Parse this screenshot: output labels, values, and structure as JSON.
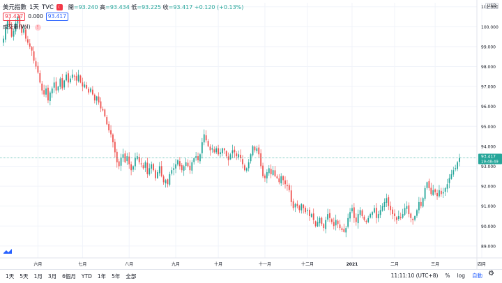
{
  "legend": {
    "symbol_name": "美元指數",
    "interval": "1天",
    "exchange": "TVC",
    "ohlc": {
      "open_label": "開",
      "open": "93.240",
      "high_label": "高",
      "high": "93.434",
      "low_label": "低",
      "low": "93.225",
      "close_label": "收",
      "close": "93.417",
      "change": "+0.120 (+0.13%)"
    },
    "bid": "93.417",
    "spread": "0.000",
    "ask": "93.417",
    "volume_label": "成交量(Vol)",
    "market_status_icon": "market-closed-icon",
    "volume_warning_icon": "warning-icon"
  },
  "currency_button": "USD",
  "price_tag": {
    "value": "93.417",
    "countdown": "19:48:49"
  },
  "toolbar": {
    "ranges": [
      "1天",
      "5天",
      "1月",
      "3月",
      "6個月",
      "YTD",
      "1年",
      "5年",
      "全部"
    ],
    "clock": "11:11:10 (UTC+8)",
    "percent": "%",
    "log": "log",
    "auto": "自動",
    "settings_icon": "gear-icon"
  },
  "colors": {
    "up": "#26a69a",
    "down": "#ef5350",
    "grid": "#f0f3fa",
    "price_line": "#26a69a"
  },
  "chart_data": {
    "type": "candlestick",
    "title": "美元指數 1天 TVC",
    "ylim": [
      88.4,
      101.2
    ],
    "y_ticks": [
      "101.000",
      "100.000",
      "99.000",
      "98.000",
      "97.000",
      "96.000",
      "95.000",
      "94.000",
      "93.000",
      "92.000",
      "91.000",
      "90.000",
      "89.000"
    ],
    "x_ticks": [
      {
        "label": "六月",
        "index": 17
      },
      {
        "label": "七月",
        "index": 39
      },
      {
        "label": "八月",
        "index": 62
      },
      {
        "label": "九月",
        "index": 85
      },
      {
        "label": "十月",
        "index": 106
      },
      {
        "label": "十一月",
        "index": 129
      },
      {
        "label": "十二月",
        "index": 150
      },
      {
        "label": "2021",
        "index": 172
      },
      {
        "label": "二月",
        "index": 193
      },
      {
        "label": "三月",
        "index": 213
      },
      {
        "label": "四月",
        "index": 236
      }
    ],
    "closes": [
      99.4,
      99.9,
      100.3,
      100.0,
      99.5,
      99.8,
      100.2,
      100.5,
      100.0,
      99.7,
      99.9,
      99.4,
      99.2,
      99.0,
      98.8,
      98.3,
      98.0,
      97.7,
      97.2,
      96.8,
      96.6,
      96.9,
      96.3,
      96.7,
      96.9,
      97.2,
      96.8,
      97.0,
      97.4,
      96.9,
      97.3,
      97.6,
      97.2,
      97.4,
      97.6,
      97.5,
      97.3,
      97.6,
      97.2,
      97.0,
      97.1,
      96.9,
      96.7,
      96.9,
      96.6,
      96.3,
      96.5,
      96.2,
      95.9,
      95.8,
      95.5,
      95.1,
      94.8,
      94.6,
      94.2,
      93.7,
      93.2,
      93.0,
      93.4,
      93.6,
      93.2,
      93.5,
      93.1,
      92.8,
      93.0,
      93.4,
      93.5,
      93.2,
      93.1,
      92.9,
      93.2,
      92.6,
      92.9,
      93.1,
      92.8,
      92.4,
      92.7,
      93.0,
      92.5,
      92.2,
      92.3,
      92.1,
      92.6,
      92.8,
      92.9,
      93.1,
      93.3,
      93.0,
      92.8,
      93.0,
      93.2,
      93.0,
      92.8,
      93.2,
      93.4,
      93.5,
      93.3,
      93.6,
      94.2,
      94.6,
      94.3,
      94.0,
      93.8,
      93.9,
      93.7,
      93.9,
      93.6,
      93.7,
      93.9,
      93.8,
      93.5,
      93.3,
      93.6,
      93.8,
      93.7,
      93.5,
      93.6,
      93.4,
      93.1,
      92.8,
      92.9,
      93.2,
      93.6,
      94.0,
      93.8,
      93.9,
      93.6,
      93.0,
      92.5,
      92.4,
      92.7,
      92.9,
      92.6,
      92.8,
      92.5,
      92.4,
      92.2,
      92.5,
      92.3,
      92.1,
      92.0,
      91.8,
      91.2,
      90.9,
      91.1,
      91.0,
      90.8,
      91.1,
      90.9,
      90.7,
      90.8,
      90.5,
      90.6,
      90.3,
      90.0,
      90.2,
      90.4,
      90.1,
      89.9,
      90.3,
      90.6,
      90.4,
      90.2,
      90.0,
      90.3,
      90.1,
      89.9,
      89.8,
      89.7,
      89.9,
      90.4,
      90.7,
      90.9,
      90.4,
      90.2,
      90.6,
      90.8,
      90.5,
      90.3,
      90.2,
      90.4,
      90.6,
      90.7,
      90.9,
      90.4,
      90.6,
      90.8,
      91.0,
      91.2,
      91.4,
      91.0,
      90.8,
      90.6,
      90.5,
      90.3,
      90.5,
      90.4,
      90.6,
      90.9,
      91.0,
      90.6,
      90.4,
      90.3,
      90.5,
      90.8,
      91.2,
      91.0,
      91.4,
      91.9,
      92.2,
      91.9,
      91.6,
      91.8,
      91.7,
      91.5,
      91.8,
      91.6,
      91.7,
      91.9,
      92.1,
      92.4,
      92.6,
      92.8,
      92.9,
      93.2,
      93.417
    ]
  }
}
